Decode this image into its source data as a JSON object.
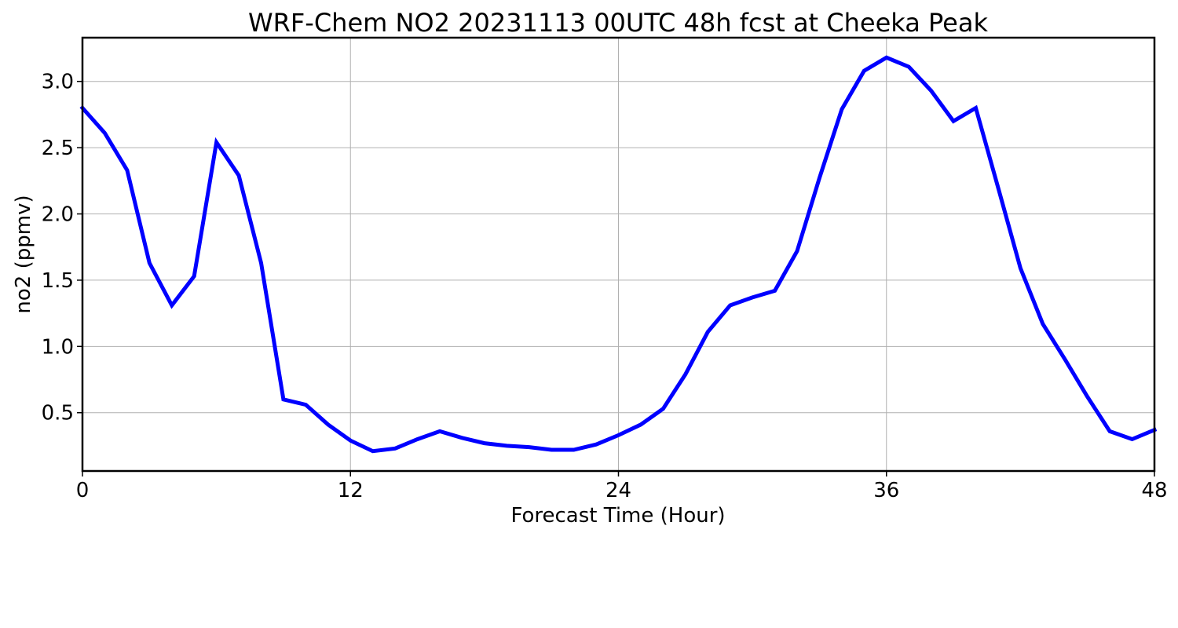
{
  "chart_data": {
    "type": "line",
    "title": "WRF-Chem NO2  20231113 00UTC 48h fcst at Cheeka Peak",
    "xlabel": "Forecast Time (Hour)",
    "ylabel": "no2  (ppmv)",
    "xlim": [
      0,
      48
    ],
    "ylim": [
      0.06,
      3.33
    ],
    "xticks": [
      0,
      12,
      24,
      36,
      48
    ],
    "xtick_labels": [
      "0",
      "12",
      "24",
      "36",
      "48"
    ],
    "yticks": [
      0.5,
      1.0,
      1.5,
      2.0,
      2.5,
      3.0
    ],
    "ytick_labels": [
      "0.5",
      "1.0",
      "1.5",
      "2.0",
      "2.5",
      "3.0"
    ],
    "grid": true,
    "series": [
      {
        "color": "#0000ff",
        "x": [
          0,
          1,
          2,
          3,
          4,
          5,
          6,
          7,
          8,
          9,
          10,
          11,
          12,
          13,
          14,
          15,
          16,
          17,
          18,
          19,
          20,
          21,
          22,
          23,
          24,
          25,
          26,
          27,
          28,
          29,
          30,
          31,
          32,
          33,
          34,
          35,
          36,
          37,
          38,
          39,
          40,
          41,
          42,
          43,
          44,
          45,
          46,
          47,
          48
        ],
        "y": [
          2.8,
          2.61,
          2.33,
          1.63,
          1.31,
          1.53,
          2.54,
          2.29,
          1.63,
          0.6,
          0.56,
          0.41,
          0.29,
          0.21,
          0.23,
          0.3,
          0.36,
          0.31,
          0.27,
          0.25,
          0.24,
          0.22,
          0.22,
          0.26,
          0.33,
          0.41,
          0.53,
          0.79,
          1.11,
          1.31,
          1.37,
          1.42,
          1.72,
          2.27,
          2.79,
          3.08,
          3.18,
          3.11,
          2.93,
          2.7,
          2.8,
          2.2,
          1.59,
          1.17,
          0.9,
          0.62,
          0.36,
          0.3,
          0.37
        ]
      }
    ]
  },
  "colors": {
    "line": "#0000ff",
    "grid": "#b0b0b0",
    "frame": "#000000"
  }
}
